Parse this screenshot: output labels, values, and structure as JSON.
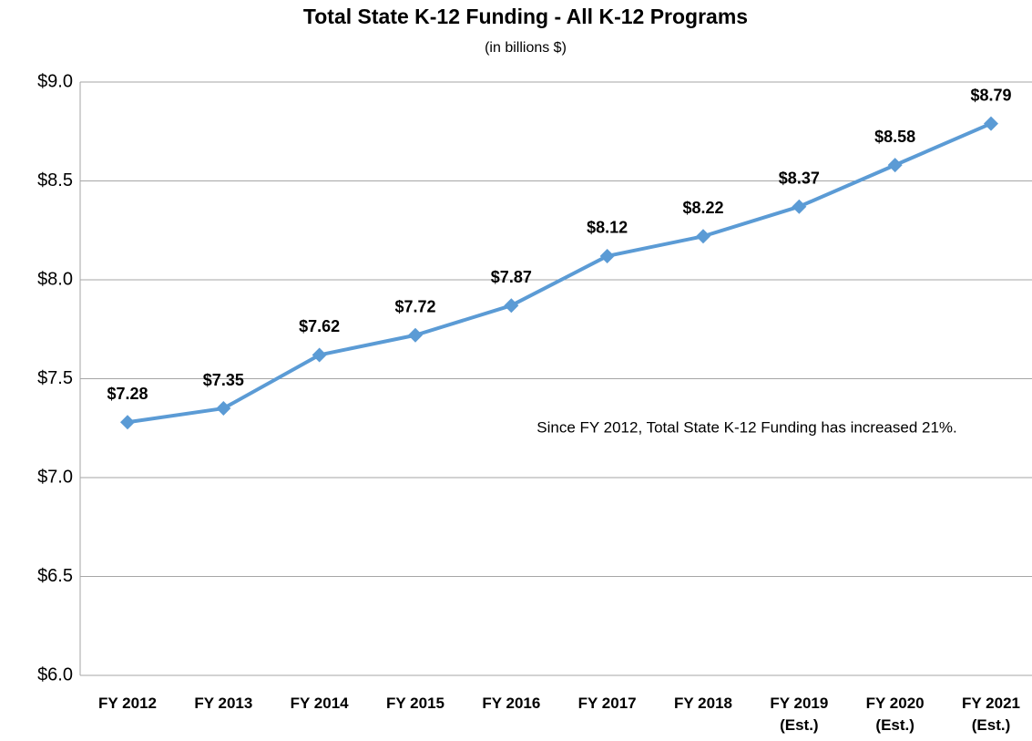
{
  "chart_data": {
    "type": "line",
    "title": "Total State K-12 Funding - All K-12 Programs",
    "subtitle": "(in billions $)",
    "annotation": "Since FY 2012, Total State K-12 Funding has increased 21%.",
    "categories": [
      "FY 2012",
      "FY 2013",
      "FY 2014",
      "FY 2015",
      "FY 2016",
      "FY 2017",
      "FY 2018",
      "FY 2019 (Est.)",
      "FY 2020 (Est.)",
      "FY 2021 (Est.)"
    ],
    "series": [
      {
        "name": "Total State K-12 Funding",
        "color": "#5b9bd5",
        "values": [
          7.28,
          7.35,
          7.62,
          7.72,
          7.87,
          8.12,
          8.22,
          8.37,
          8.58,
          8.79
        ],
        "value_labels": [
          "$7.28",
          "$7.35",
          "$7.62",
          "$7.72",
          "$7.87",
          "$8.12",
          "$8.22",
          "$8.37",
          "$8.58",
          "$8.79"
        ]
      }
    ],
    "ylim": [
      6,
      9
    ],
    "yticks": [
      {
        "value": 6,
        "label": "$6.0"
      },
      {
        "value": 6.5,
        "label": "$6.5"
      },
      {
        "value": 7,
        "label": "$7.0"
      },
      {
        "value": 7.5,
        "label": "$7.5"
      },
      {
        "value": 8,
        "label": "$8.0"
      },
      {
        "value": 8.5,
        "label": "$8.5"
      },
      {
        "value": 9,
        "label": "$9.0"
      }
    ],
    "grid": true
  }
}
